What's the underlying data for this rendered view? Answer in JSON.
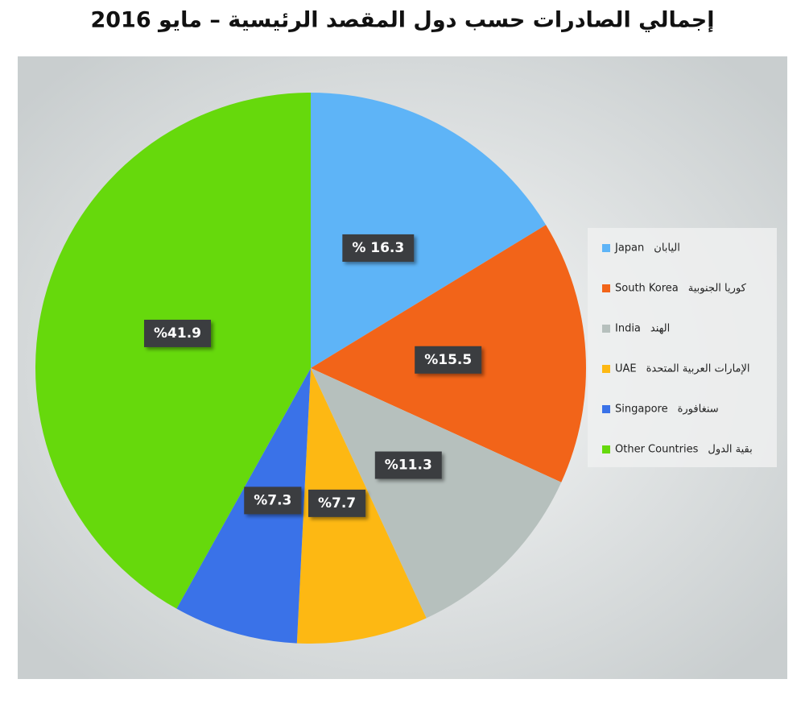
{
  "chart_data": {
    "type": "pie",
    "title": "إجمالي الصادرات حسب دول المقصد الرئيسية – مايو 2016",
    "categories": [
      "Japan",
      "South Korea",
      "India",
      "UAE",
      "Singapore",
      "Other Countries"
    ],
    "categories_ar": [
      "اليابان",
      "كوريا الجنوبية",
      "الهند",
      "الإمارات العربية المتحدة",
      "سنغافورة",
      "بقية الدول"
    ],
    "values": [
      16.3,
      15.5,
      11.3,
      7.7,
      7.3,
      41.9
    ],
    "value_labels": [
      "% 16.3",
      "%15.5",
      "%11.3",
      "%7.7",
      "%7.3",
      "%41.9"
    ],
    "colors": [
      "#5eb4f7",
      "#f26419",
      "#b6c0bd",
      "#fdb813",
      "#3a72e8",
      "#66d90c"
    ],
    "legend": "right"
  }
}
